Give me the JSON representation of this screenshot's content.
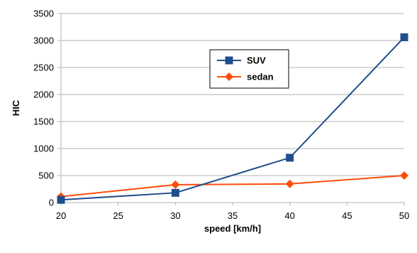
{
  "chart_data": {
    "type": "line",
    "x": [
      20,
      30,
      40,
      50
    ],
    "series": [
      {
        "name": "SUV",
        "values": [
          50,
          180,
          830,
          3060
        ],
        "color": "#1f4e8c",
        "marker": "square"
      },
      {
        "name": "sedan",
        "values": [
          110,
          330,
          345,
          500
        ],
        "color": "#ff4c0a",
        "marker": "diamond"
      }
    ],
    "xlabel": "speed [km/h]",
    "ylabel": "HIC",
    "xlim": [
      20,
      50
    ],
    "ylim": [
      0,
      3500
    ],
    "xticks": [
      20,
      25,
      30,
      35,
      40,
      45,
      50
    ],
    "yticks": [
      0,
      500,
      1000,
      1500,
      2000,
      2500,
      3000,
      3500
    ],
    "grid": "horizontal",
    "legend_position": "top-center"
  }
}
